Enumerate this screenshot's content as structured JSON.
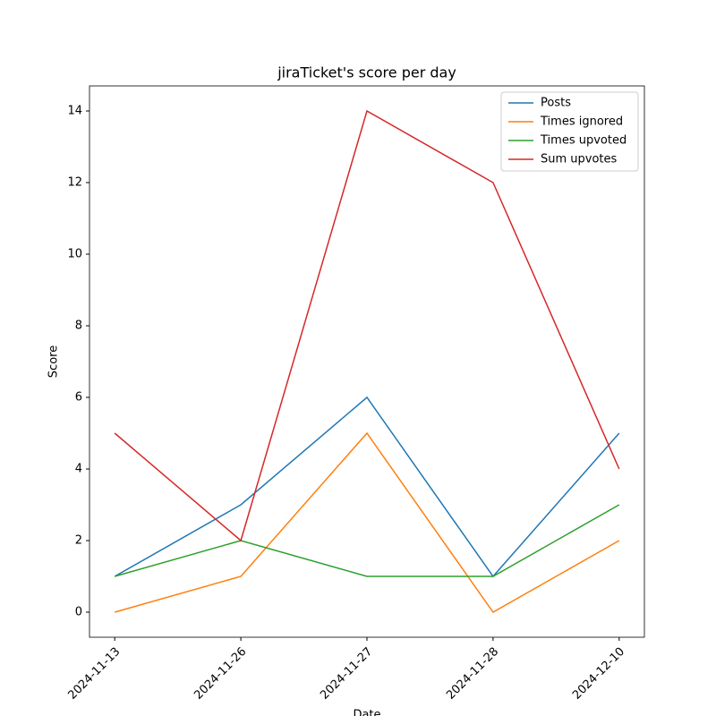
{
  "chart_data": {
    "type": "line",
    "title": "jiraTicket's score per day",
    "xlabel": "Date",
    "ylabel": "Score",
    "categories": [
      "2024-11-13",
      "2024-11-26",
      "2024-11-27",
      "2024-11-28",
      "2024-12-10"
    ],
    "series": [
      {
        "name": "Posts",
        "color": "#1f77b4",
        "values": [
          1,
          3,
          6,
          1,
          5
        ]
      },
      {
        "name": "Times ignored",
        "color": "#ff7f0e",
        "values": [
          0,
          1,
          5,
          0,
          2
        ]
      },
      {
        "name": "Times upvoted",
        "color": "#2ca02c",
        "values": [
          1,
          2,
          1,
          1,
          3
        ]
      },
      {
        "name": "Sum upvotes",
        "color": "#d62728",
        "values": [
          5,
          2,
          14,
          12,
          4
        ]
      }
    ],
    "ylim": [
      -0.7,
      14.7
    ],
    "yticks": [
      0,
      2,
      4,
      6,
      8,
      10,
      12,
      14
    ],
    "legend": "upper right"
  }
}
